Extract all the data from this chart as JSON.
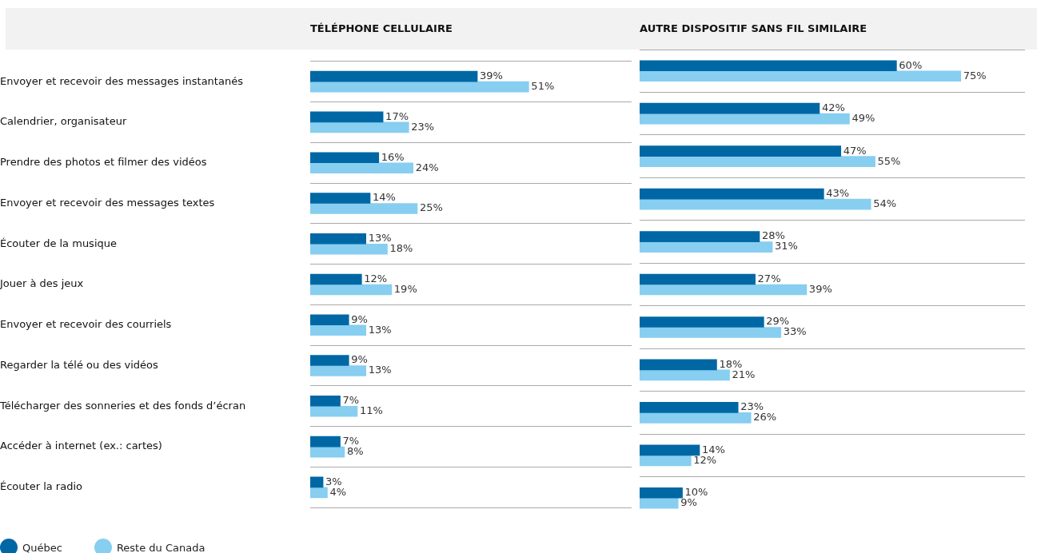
{
  "chart_data": [
    {
      "type": "bar",
      "orientation": "horizontal",
      "title": "TÉLÉPHONE CELLULAIRE",
      "categories": [
        "Envoyer et recevoir des messages instantanés",
        "Calendrier, organisateur",
        "Prendre des photos et filmer des vidéos",
        "Envoyer et recevoir des messages textes",
        "Écouter de la musique",
        "Jouer à des jeux",
        "Envoyer et recevoir des courriels",
        "Regarder la télé ou des vidéos",
        "Télécharger des sonneries et des fonds d’écran",
        "Accéder à internet (ex.: cartes)",
        "Écouter la radio"
      ],
      "xlim": [
        0,
        75
      ],
      "grid": "y",
      "legend": "bottom left",
      "tick_labels": "y",
      "series": [
        {
          "name": "Québec",
          "color": "#0067a5",
          "values": [
            39,
            17,
            16,
            14,
            13,
            12,
            9,
            9,
            7,
            7,
            3
          ],
          "value_labels": [
            "39%",
            "17%",
            "16%",
            "14%",
            "13%",
            "12%",
            "9%",
            "9%",
            "7%",
            "7%",
            "3%"
          ]
        },
        {
          "name": "Reste du Canada",
          "color": "#87cef0",
          "values": [
            51,
            23,
            24,
            25,
            18,
            19,
            13,
            13,
            11,
            8,
            4
          ],
          "value_labels": [
            "51%",
            "23%",
            "24%",
            "25%",
            "18%",
            "19%",
            "13%",
            "13%",
            "11%",
            "8%",
            "4%"
          ]
        }
      ]
    },
    {
      "type": "bar",
      "orientation": "horizontal",
      "title": "AUTRE DISPOSITIF SANS FIL SIMILAIRE",
      "categories": [
        null,
        null,
        null,
        null,
        null,
        null,
        null,
        null,
        null,
        null,
        null
      ],
      "xlim": [
        0,
        90
      ],
      "grid": "y",
      "tick_labels": false,
      "series": [
        {
          "color": "#0067a5",
          "values": [
            60,
            42,
            47,
            43,
            28,
            27,
            29,
            18,
            23,
            14,
            10
          ],
          "value_labels": [
            "60%",
            "42%",
            "47%",
            "43%",
            "28%",
            "27%",
            "29%",
            "18%",
            "23%",
            "14%",
            "10%"
          ]
        },
        {
          "color": "#87cef0",
          "values": [
            75,
            49,
            55,
            54,
            31,
            39,
            33,
            21,
            26,
            12,
            9
          ],
          "value_labels": [
            "75%",
            "49%",
            "55%",
            "54%",
            "31%",
            "39%",
            "33%",
            "21%",
            "26%",
            "12%",
            "9%"
          ]
        }
      ]
    }
  ]
}
